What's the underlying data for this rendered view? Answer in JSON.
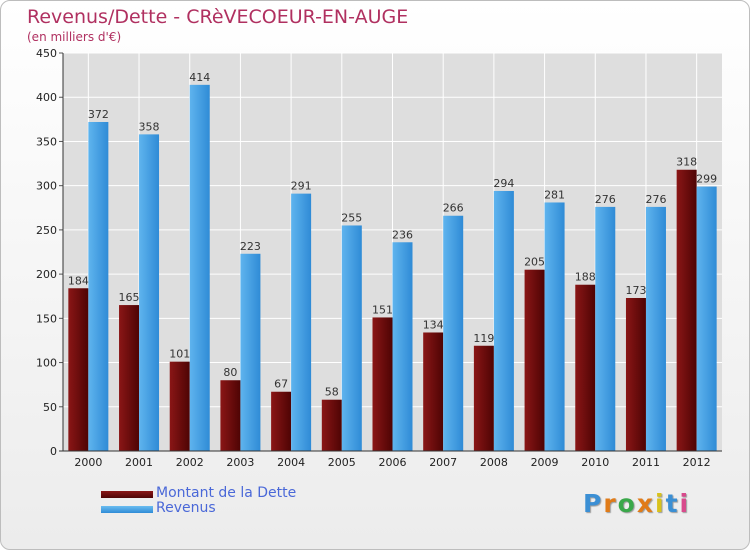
{
  "chart_data": {
    "type": "bar",
    "title": "Revenus/Dette - CRèVECOEUR-EN-AUGE",
    "subtitle": "(en milliers d'€)",
    "categories": [
      "2000",
      "2001",
      "2002",
      "2003",
      "2004",
      "2005",
      "2006",
      "2007",
      "2008",
      "2009",
      "2010",
      "2011",
      "2012"
    ],
    "series": [
      {
        "name": "Montant de la Dette",
        "color": "#7a1010",
        "values": [
          184,
          165,
          101,
          80,
          67,
          58,
          151,
          134,
          119,
          205,
          188,
          173,
          318
        ]
      },
      {
        "name": "Revenus",
        "color": "#4aa3e6",
        "values": [
          372,
          358,
          414,
          223,
          291,
          255,
          236,
          266,
          294,
          281,
          276,
          276,
          299
        ]
      }
    ],
    "ylim": [
      0,
      450
    ],
    "yticks": [
      0,
      50,
      100,
      150,
      200,
      250,
      300,
      350,
      400,
      450
    ],
    "grid": true,
    "legend": "bottom-left",
    "xlabel": "",
    "ylabel": ""
  },
  "brand": {
    "text": "Proxiti",
    "colors": [
      "#3b8fd4",
      "#e07b18",
      "#3aa84a",
      "#e07b18",
      "#d8c21c",
      "#3b8fd4",
      "#d84a8c"
    ]
  }
}
